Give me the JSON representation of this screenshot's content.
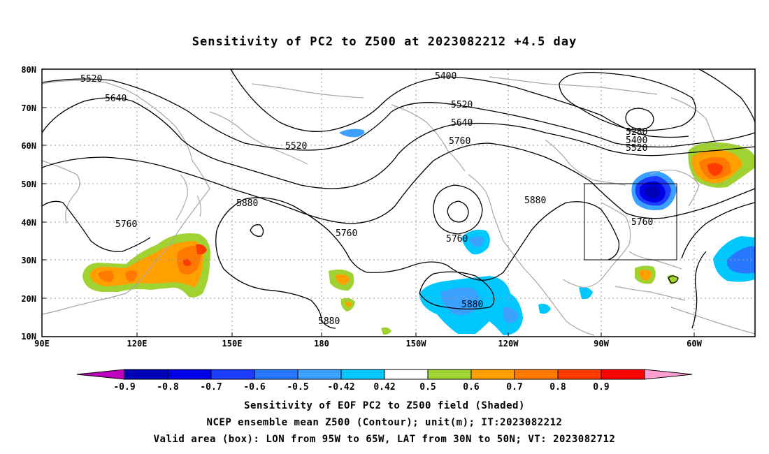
{
  "title": "Sensitivity of PC2 to Z500 at 2023082212 +4.5 day",
  "map": {
    "lat_labels": [
      "80N",
      "70N",
      "60N",
      "50N",
      "40N",
      "30N",
      "20N",
      "10N"
    ],
    "lon_labels": [
      "90E",
      "120E",
      "150E",
      "180",
      "150W",
      "120W",
      "90W",
      "60W"
    ],
    "contour_labels": [
      {
        "text": "5520",
        "id": "c1"
      },
      {
        "text": "5640",
        "id": "c2"
      },
      {
        "text": "5520",
        "id": "c3"
      },
      {
        "text": "5400",
        "id": "c4"
      },
      {
        "text": "5520",
        "id": "c5"
      },
      {
        "text": "5640",
        "id": "c6"
      },
      {
        "text": "5760",
        "id": "c7"
      },
      {
        "text": "5280",
        "id": "c8"
      },
      {
        "text": "5400",
        "id": "c9"
      },
      {
        "text": "5520",
        "id": "c10"
      },
      {
        "text": "5880",
        "id": "c11"
      },
      {
        "text": "5760",
        "id": "c12"
      },
      {
        "text": "5760",
        "id": "c13"
      },
      {
        "text": "5760",
        "id": "c14"
      },
      {
        "text": "5880",
        "id": "c15"
      },
      {
        "text": "5760",
        "id": "c16"
      },
      {
        "text": "5880",
        "id": "c17"
      },
      {
        "text": "5880",
        "id": "c18"
      }
    ],
    "valid_box": {
      "lon_west": "95W",
      "lon_east": "65W",
      "lat_south": "30N",
      "lat_north": "50N"
    }
  },
  "colorbar": {
    "labels": [
      "-0.9",
      "-0.8",
      "-0.7",
      "-0.6",
      "-0.5",
      "-0.42",
      "0.42",
      "0.5",
      "0.6",
      "0.7",
      "0.8",
      "0.9"
    ],
    "colors": [
      "#c000c0",
      "#0000b4",
      "#0000e6",
      "#1e3cff",
      "#2878ff",
      "#3ca0ff",
      "#00c8ff",
      "#ffffff",
      "#a0d232",
      "#ffa000",
      "#ff7800",
      "#ff3c00",
      "#ff0000",
      "#ff9ed2"
    ]
  },
  "caption": {
    "line1": "Sensitivity of EOF PC2 to Z500 field (Shaded)",
    "line2": "NCEP ensemble mean Z500 (Contour); unit(m); IT:2023082212",
    "line3": "Valid area (box): LON from 95W to 65W, LAT from 30N to 50N; VT: 2023082712"
  }
}
